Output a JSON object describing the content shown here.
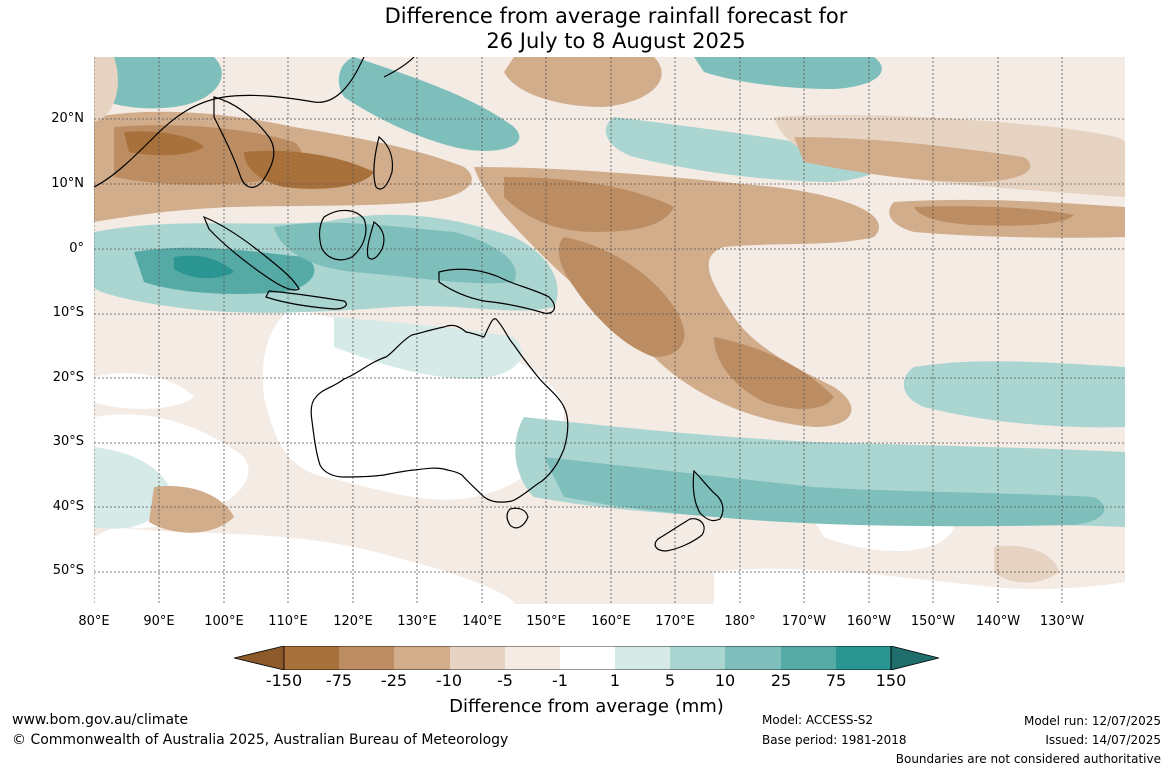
{
  "title": {
    "line1": "Difference from average rainfall forecast for",
    "line2": "26 July to 8 August 2025"
  },
  "map": {
    "lat_labels": [
      "20°N",
      "10°N",
      "0°",
      "10°S",
      "20°S",
      "30°S",
      "40°S",
      "50°S"
    ],
    "lon_labels": [
      "80°E",
      "90°E",
      "100°E",
      "110°E",
      "120°E",
      "130°E",
      "140°E",
      "150°E",
      "160°E",
      "170°E",
      "180°",
      "170°W",
      "160°W",
      "150°W",
      "140°W",
      "130°W"
    ]
  },
  "legend": {
    "ticks": [
      "-150",
      "-75",
      "-25",
      "-10",
      "-5",
      "-1",
      "1",
      "5",
      "10",
      "25",
      "75",
      "150"
    ],
    "colors": [
      "#a8703a",
      "#bc8d62",
      "#d1ad8c",
      "#e6d3c2",
      "#f3ebe4",
      "#ffffff",
      "#d6eae8",
      "#abd5d1",
      "#7ebfbb",
      "#55aaa6",
      "#2b9592",
      "#1f6e6c"
    ],
    "label": "Difference from average (mm)"
  },
  "footer": {
    "url": "www.bom.gov.au/climate",
    "copyright": "© Commonwealth of Australia 2025, Australian Bureau of Meteorology",
    "model": "Model: ACCESS-S2",
    "base_period": "Base period: 1981-2018",
    "model_run": "Model run: 12/07/2025",
    "issued": "Issued: 14/07/2025",
    "disclaimer": "Boundaries are not considered authoritative"
  }
}
